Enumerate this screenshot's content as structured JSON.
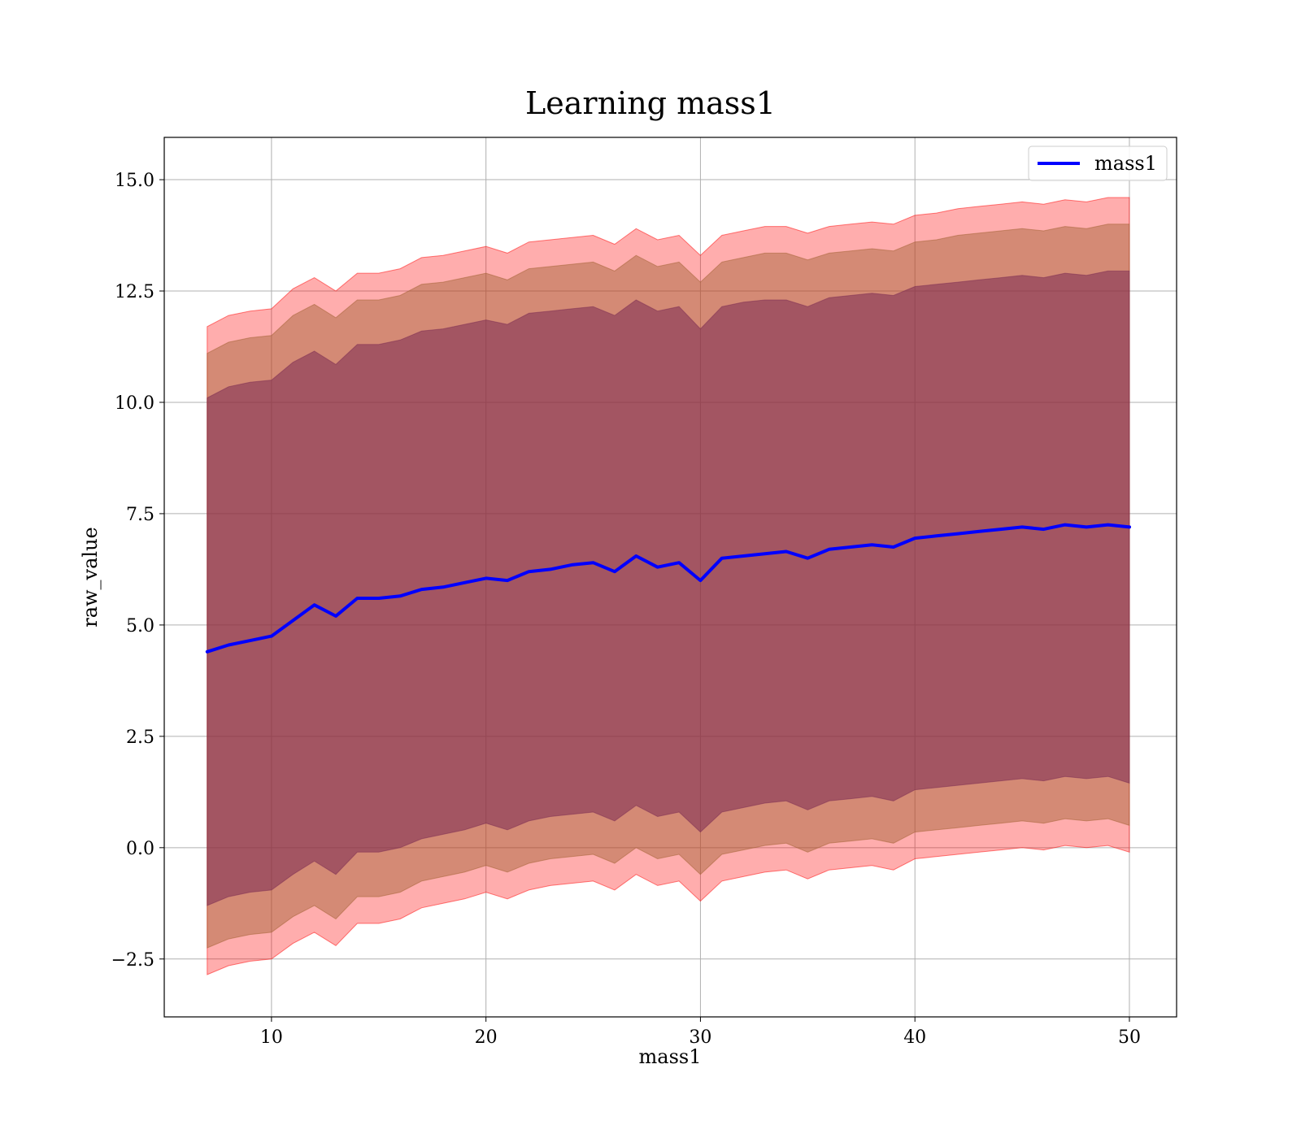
{
  "chart_data": {
    "type": "area",
    "title": "Learning mass1",
    "xlabel": "mass1",
    "ylabel": "raw_value",
    "xlim": [
      5,
      52.2
    ],
    "ylim": [
      -3.8,
      15.95
    ],
    "xticks": [
      10,
      20,
      30,
      40,
      50
    ],
    "yticks": [
      -2.5,
      0.0,
      2.5,
      5.0,
      7.5,
      10.0,
      12.5,
      15.0
    ],
    "xtick_labels": [
      "10",
      "20",
      "30",
      "40",
      "50"
    ],
    "ytick_labels": [
      "−2.5",
      "0.0",
      "2.5",
      "5.0",
      "7.5",
      "10.0",
      "12.5",
      "15.0"
    ],
    "grid": true,
    "legend": {
      "position": "top-right",
      "entries": [
        "mass1"
      ]
    },
    "colors": {
      "line": "#0000ff",
      "band_outer": "#ff0000",
      "band_middle": "#a06030",
      "band_inner": "#7a2a52",
      "grid": "#b0b0b0"
    },
    "series": [
      {
        "name": "mass1",
        "x": [
          7,
          8,
          9,
          10,
          11,
          12,
          13,
          14,
          15,
          16,
          17,
          18,
          19,
          20,
          21,
          22,
          23,
          24,
          25,
          26,
          27,
          28,
          29,
          30,
          31,
          32,
          33,
          34,
          35,
          36,
          37,
          38,
          39,
          40,
          41,
          42,
          43,
          44,
          45,
          46,
          47,
          48,
          49,
          50
        ],
        "y": [
          4.4,
          4.55,
          4.65,
          4.75,
          5.1,
          5.45,
          5.2,
          5.6,
          5.6,
          5.65,
          5.8,
          5.85,
          5.95,
          6.05,
          6.0,
          6.2,
          6.25,
          6.35,
          6.4,
          6.2,
          6.55,
          6.3,
          6.4,
          6.0,
          6.5,
          6.55,
          6.6,
          6.65,
          6.5,
          6.7,
          6.75,
          6.8,
          6.75,
          6.95,
          7.0,
          7.05,
          7.1,
          7.15,
          7.2,
          7.15,
          7.25,
          7.2,
          7.25,
          7.2
        ]
      }
    ],
    "bands": [
      {
        "level": "outer",
        "x": [
          7,
          8,
          9,
          10,
          11,
          12,
          13,
          14,
          15,
          16,
          17,
          18,
          19,
          20,
          21,
          22,
          23,
          24,
          25,
          26,
          27,
          28,
          29,
          30,
          31,
          32,
          33,
          34,
          35,
          36,
          37,
          38,
          39,
          40,
          41,
          42,
          43,
          44,
          45,
          46,
          47,
          48,
          49,
          50
        ],
        "upper": [
          11.7,
          11.95,
          12.05,
          12.1,
          12.55,
          12.8,
          12.5,
          12.9,
          12.9,
          13.0,
          13.25,
          13.3,
          13.4,
          13.5,
          13.35,
          13.6,
          13.65,
          13.7,
          13.75,
          13.55,
          13.9,
          13.65,
          13.75,
          13.3,
          13.75,
          13.85,
          13.95,
          13.95,
          13.8,
          13.95,
          14.0,
          14.05,
          14.0,
          14.2,
          14.25,
          14.35,
          14.4,
          14.45,
          14.5,
          14.45,
          14.55,
          14.5,
          14.6,
          14.6
        ],
        "lower": [
          -2.85,
          -2.65,
          -2.55,
          -2.5,
          -2.15,
          -1.9,
          -2.2,
          -1.7,
          -1.7,
          -1.6,
          -1.35,
          -1.25,
          -1.15,
          -1.0,
          -1.15,
          -0.95,
          -0.85,
          -0.8,
          -0.75,
          -0.95,
          -0.6,
          -0.85,
          -0.75,
          -1.2,
          -0.75,
          -0.65,
          -0.55,
          -0.5,
          -0.7,
          -0.5,
          -0.45,
          -0.4,
          -0.5,
          -0.25,
          -0.2,
          -0.15,
          -0.1,
          -0.05,
          0.0,
          -0.05,
          0.05,
          0.0,
          0.05,
          -0.1
        ]
      },
      {
        "level": "middle",
        "x": [
          7,
          8,
          9,
          10,
          11,
          12,
          13,
          14,
          15,
          16,
          17,
          18,
          19,
          20,
          21,
          22,
          23,
          24,
          25,
          26,
          27,
          28,
          29,
          30,
          31,
          32,
          33,
          34,
          35,
          36,
          37,
          38,
          39,
          40,
          41,
          42,
          43,
          44,
          45,
          46,
          47,
          48,
          49,
          50
        ],
        "upper": [
          11.1,
          11.35,
          11.45,
          11.5,
          11.95,
          12.2,
          11.9,
          12.3,
          12.3,
          12.4,
          12.65,
          12.7,
          12.8,
          12.9,
          12.75,
          13.0,
          13.05,
          13.1,
          13.15,
          12.95,
          13.3,
          13.05,
          13.15,
          12.7,
          13.15,
          13.25,
          13.35,
          13.35,
          13.2,
          13.35,
          13.4,
          13.45,
          13.4,
          13.6,
          13.65,
          13.75,
          13.8,
          13.85,
          13.9,
          13.85,
          13.95,
          13.9,
          14.0,
          14.0
        ],
        "lower": [
          -2.25,
          -2.05,
          -1.95,
          -1.9,
          -1.55,
          -1.3,
          -1.6,
          -1.1,
          -1.1,
          -1.0,
          -0.75,
          -0.65,
          -0.55,
          -0.4,
          -0.55,
          -0.35,
          -0.25,
          -0.2,
          -0.15,
          -0.35,
          0.0,
          -0.25,
          -0.15,
          -0.6,
          -0.15,
          -0.05,
          0.05,
          0.1,
          -0.1,
          0.1,
          0.15,
          0.2,
          0.1,
          0.35,
          0.4,
          0.45,
          0.5,
          0.55,
          0.6,
          0.55,
          0.65,
          0.6,
          0.65,
          0.5
        ]
      },
      {
        "level": "inner",
        "x": [
          7,
          8,
          9,
          10,
          11,
          12,
          13,
          14,
          15,
          16,
          17,
          18,
          19,
          20,
          21,
          22,
          23,
          24,
          25,
          26,
          27,
          28,
          29,
          30,
          31,
          32,
          33,
          34,
          35,
          36,
          37,
          38,
          39,
          40,
          41,
          42,
          43,
          44,
          45,
          46,
          47,
          48,
          49,
          50
        ],
        "upper": [
          10.1,
          10.35,
          10.45,
          10.5,
          10.9,
          11.15,
          10.85,
          11.3,
          11.3,
          11.4,
          11.6,
          11.65,
          11.75,
          11.85,
          11.75,
          12.0,
          12.05,
          12.1,
          12.15,
          11.95,
          12.3,
          12.05,
          12.15,
          11.65,
          12.15,
          12.25,
          12.3,
          12.3,
          12.15,
          12.35,
          12.4,
          12.45,
          12.4,
          12.6,
          12.65,
          12.7,
          12.75,
          12.8,
          12.85,
          12.8,
          12.9,
          12.85,
          12.95,
          12.95
        ],
        "lower": [
          -1.3,
          -1.1,
          -1.0,
          -0.95,
          -0.6,
          -0.3,
          -0.6,
          -0.1,
          -0.1,
          0.0,
          0.2,
          0.3,
          0.4,
          0.55,
          0.4,
          0.6,
          0.7,
          0.75,
          0.8,
          0.6,
          0.95,
          0.7,
          0.8,
          0.35,
          0.8,
          0.9,
          1.0,
          1.05,
          0.85,
          1.05,
          1.1,
          1.15,
          1.05,
          1.3,
          1.35,
          1.4,
          1.45,
          1.5,
          1.55,
          1.5,
          1.6,
          1.55,
          1.6,
          1.45
        ]
      }
    ]
  }
}
